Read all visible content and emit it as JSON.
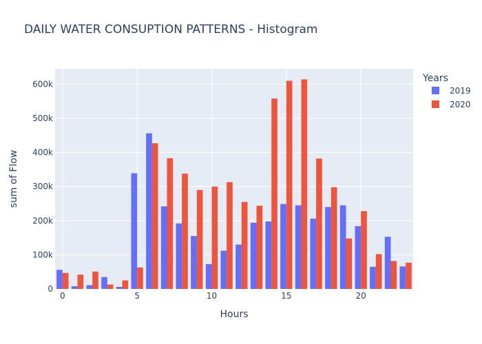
{
  "chart_data": {
    "type": "bar",
    "title": "DAILY WATER CONSUPTION PATTERNS - Histogram",
    "xlabel": "Hours",
    "ylabel": "sum of Flow",
    "x": [
      0,
      1,
      2,
      3,
      4,
      5,
      6,
      7,
      8,
      9,
      10,
      11,
      12,
      13,
      14,
      15,
      16,
      17,
      18,
      19,
      20,
      21,
      22,
      23
    ],
    "xlim": [
      -0.5,
      23.5
    ],
    "ylim": [
      0,
      645000
    ],
    "x_ticks": [
      0,
      5,
      10,
      15,
      20
    ],
    "x_tick_labels": [
      "0",
      "5",
      "10",
      "15",
      "20"
    ],
    "y_ticks": [
      0,
      100000,
      200000,
      300000,
      400000,
      500000,
      600000
    ],
    "y_tick_labels": [
      "0",
      "100k",
      "200k",
      "300k",
      "400k",
      "500k",
      "600k"
    ],
    "grid": true,
    "legend": {
      "title": "Years",
      "position": "top-right"
    },
    "series": [
      {
        "name": "2019",
        "color": "#636efa",
        "values": [
          56000,
          8000,
          11000,
          35000,
          6000,
          339000,
          456000,
          242000,
          192000,
          155000,
          73000,
          112000,
          130000,
          194000,
          198000,
          249000,
          245000,
          206000,
          240000,
          245000,
          184000,
          65000,
          153000,
          66000
        ]
      },
      {
        "name": "2020",
        "color": "#ef553b",
        "values": [
          47000,
          42000,
          51000,
          13000,
          25000,
          63000,
          427000,
          383000,
          338000,
          290000,
          300000,
          313000,
          255000,
          244000,
          558000,
          610000,
          614000,
          382000,
          298000,
          148000,
          228000,
          102000,
          82000,
          77000
        ]
      }
    ]
  }
}
